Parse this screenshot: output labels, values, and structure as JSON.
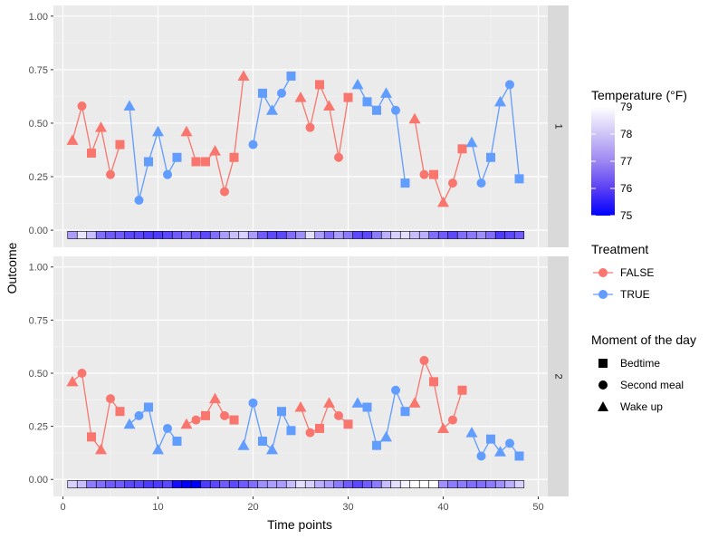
{
  "chart_data": {
    "type": "line",
    "xlabel": "Time points",
    "ylabel": "Outcome",
    "xlim": [
      -1,
      51
    ],
    "ylim": [
      -0.08,
      1.05
    ],
    "x_ticks": [
      0,
      10,
      20,
      30,
      40,
      50
    ],
    "y_ticks": [
      0.0,
      0.25,
      0.5,
      0.75,
      1.0
    ],
    "x_tick_labels": [
      "0",
      "10",
      "20",
      "30",
      "40",
      "50"
    ],
    "y_tick_labels": [
      "0.00",
      "0.25",
      "0.50",
      "0.75",
      "1.00"
    ],
    "colors": {
      "FALSE": "#F8766D",
      "TRUE": "#619CFF"
    },
    "legend": {
      "temperature": {
        "title": "Temperature (°F)",
        "min": 75,
        "max": 79,
        "ticks": [
          "79",
          "78",
          "77",
          "76",
          "75"
        ],
        "low_color": "#0000ff",
        "high_color": "#ffffff"
      },
      "treatment": {
        "title": "Treatment",
        "items": [
          "FALSE",
          "TRUE"
        ]
      },
      "moment": {
        "title": "Moment of the day",
        "items": [
          {
            "label": "Bedtime",
            "shape": "square"
          },
          {
            "label": "Second meal",
            "shape": "circle"
          },
          {
            "label": "Wake up",
            "shape": "triangle"
          }
        ]
      }
    },
    "facets": [
      {
        "label": "1",
        "shapes": [
          "t",
          "c",
          "s",
          "t",
          "c",
          "s",
          "t",
          "c",
          "s",
          "t",
          "c",
          "s",
          "t",
          "s",
          "s",
          "t",
          "c",
          "s",
          "t",
          "c",
          "s",
          "t",
          "c",
          "s",
          "t",
          "c",
          "s",
          "t",
          "c",
          "s",
          "t",
          "s",
          "s",
          "t",
          "c",
          "s",
          "t",
          "c",
          "s",
          "t",
          "c",
          "s",
          "t",
          "c",
          "s",
          "t",
          "c",
          "s"
        ],
        "treatment": [
          0,
          0,
          0,
          0,
          0,
          0,
          1,
          1,
          1,
          1,
          1,
          1,
          0,
          0,
          0,
          0,
          0,
          0,
          0,
          1,
          1,
          1,
          1,
          1,
          0,
          0,
          0,
          0,
          0,
          0,
          1,
          1,
          1,
          1,
          1,
          1,
          0,
          0,
          0,
          0,
          0,
          0,
          1,
          1,
          1,
          1,
          1,
          1
        ],
        "y": [
          0.42,
          0.58,
          0.36,
          0.48,
          0.26,
          0.4,
          0.58,
          0.14,
          0.32,
          0.46,
          0.26,
          0.34,
          0.46,
          0.32,
          0.32,
          0.37,
          0.18,
          0.34,
          0.72,
          0.4,
          0.64,
          0.56,
          0.64,
          0.72,
          0.62,
          0.48,
          0.68,
          0.58,
          0.34,
          0.62,
          0.68,
          0.6,
          0.56,
          0.64,
          0.56,
          0.22,
          0.52,
          0.26,
          0.26,
          0.13,
          0.22,
          0.38,
          0.41,
          0.22,
          0.34,
          0.6,
          0.68,
          0.24
        ],
        "temperature": [
          77.5,
          78.6,
          78.0,
          76.8,
          76.5,
          76.5,
          76.2,
          76.2,
          76.0,
          76.0,
          76.2,
          76.5,
          76.8,
          76.5,
          76.2,
          76.8,
          77.5,
          78.0,
          78.3,
          77.5,
          76.5,
          76.2,
          76.2,
          76.8,
          77.3,
          78.5,
          77.5,
          76.8,
          77.5,
          77.0,
          76.2,
          76.2,
          77.0,
          77.8,
          78.3,
          78.5,
          78.0,
          77.8,
          76.8,
          76.5,
          76.2,
          76.8,
          77.0,
          77.3,
          76.8,
          76.0,
          76.2,
          76.5
        ]
      },
      {
        "label": "2",
        "shapes": [
          "t",
          "c",
          "s",
          "t",
          "c",
          "s",
          "t",
          "c",
          "s",
          "t",
          "c",
          "s",
          "t",
          "c",
          "s",
          "t",
          "c",
          "s",
          "t",
          "c",
          "s",
          "t",
          "s",
          "s",
          "t",
          "c",
          "s",
          "t",
          "c",
          "s",
          "t",
          "s",
          "s",
          "t",
          "c",
          "s",
          "t",
          "c",
          "s",
          "t",
          "c",
          "s",
          "t",
          "c",
          "s",
          "t",
          "c",
          "s"
        ],
        "treatment": [
          0,
          0,
          0,
          0,
          0,
          0,
          1,
          1,
          1,
          1,
          1,
          1,
          0,
          0,
          0,
          0,
          0,
          0,
          1,
          1,
          1,
          1,
          1,
          1,
          0,
          0,
          0,
          0,
          0,
          0,
          1,
          1,
          1,
          1,
          1,
          1,
          0,
          0,
          0,
          0,
          0,
          0,
          1,
          1,
          1,
          1,
          1,
          1
        ],
        "y": [
          0.46,
          0.5,
          0.2,
          0.14,
          0.38,
          0.32,
          0.26,
          0.3,
          0.34,
          0.14,
          0.24,
          0.18,
          0.26,
          0.28,
          0.3,
          0.38,
          0.3,
          0.28,
          0.16,
          0.36,
          0.18,
          0.14,
          0.32,
          0.23,
          0.34,
          0.22,
          0.24,
          0.36,
          0.3,
          0.26,
          0.36,
          0.34,
          0.16,
          0.2,
          0.42,
          0.32,
          0.36,
          0.56,
          0.46,
          0.24,
          0.28,
          0.42,
          0.22,
          0.11,
          0.19,
          0.13,
          0.17,
          0.11
        ],
        "temperature": [
          78.3,
          78.0,
          77.0,
          76.8,
          76.5,
          76.5,
          76.2,
          76.2,
          76.0,
          76.0,
          76.2,
          75.2,
          75.0,
          75.0,
          76.0,
          76.2,
          76.5,
          76.2,
          76.5,
          76.8,
          77.3,
          77.5,
          77.5,
          78.0,
          78.5,
          78.3,
          77.8,
          77.5,
          77.0,
          76.5,
          76.2,
          76.5,
          77.0,
          78.0,
          78.5,
          78.8,
          79.0,
          79.0,
          79.0,
          77.3,
          77.0,
          77.0,
          76.8,
          76.8,
          77.0,
          77.3,
          77.8,
          78.3
        ]
      }
    ]
  }
}
